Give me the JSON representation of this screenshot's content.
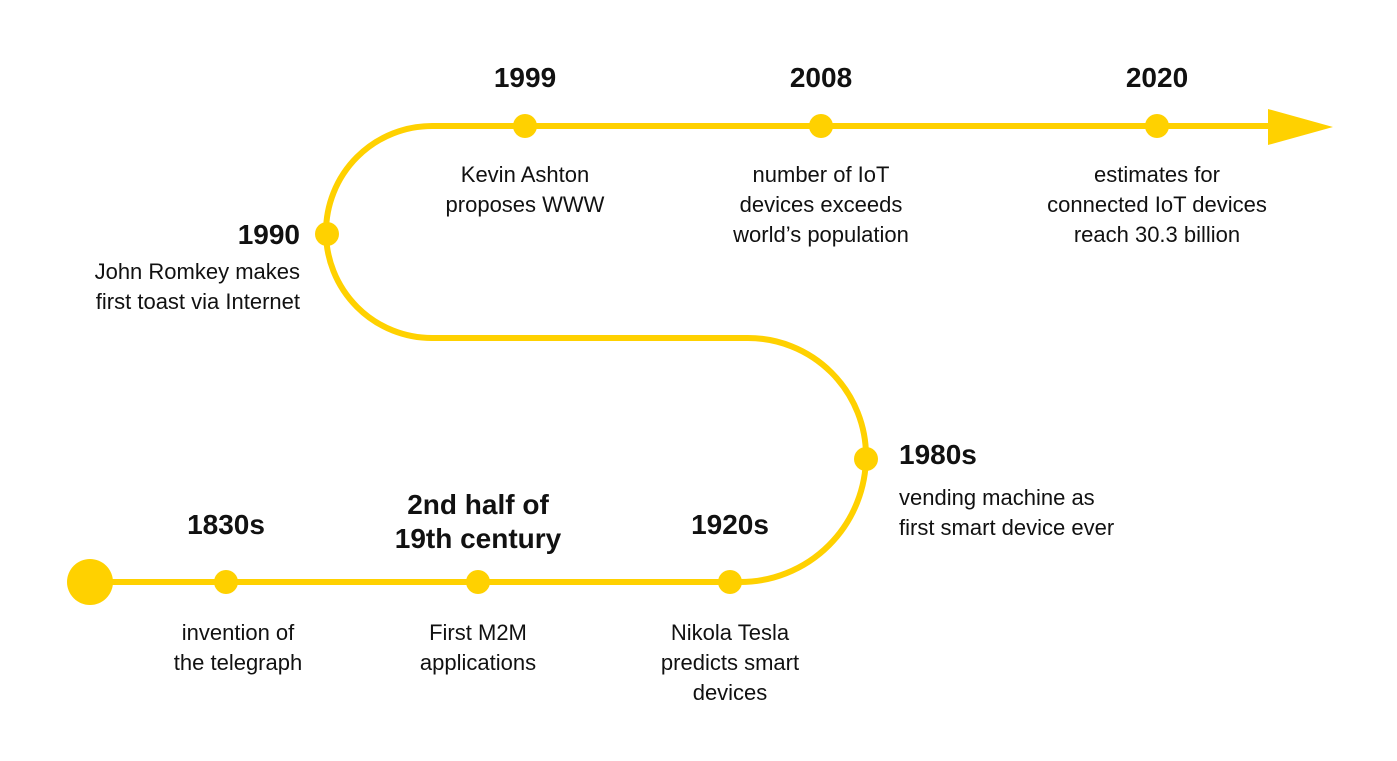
{
  "accent_color": "#FFD100",
  "events": [
    {
      "id": "1830s",
      "year": "1830s",
      "desc": "invention of\nthe telegraph"
    },
    {
      "id": "m2m",
      "year": "2nd half of\n19th century",
      "desc": "First M2M\napplications"
    },
    {
      "id": "1920s",
      "year": "1920s",
      "desc": "Nikola Tesla\npredicts smart\ndevices"
    },
    {
      "id": "1980s",
      "year": "1980s",
      "desc": "vending machine as\nfirst smart device ever"
    },
    {
      "id": "1990",
      "year": "1990",
      "desc": "John Romkey makes\nfirst toast via Internet"
    },
    {
      "id": "1999",
      "year": "1999",
      "desc": "Kevin Ashton\nproposes WWW"
    },
    {
      "id": "2008",
      "year": "2008",
      "desc": "number of IoT\ndevices exceeds\nworld’s population"
    },
    {
      "id": "2020",
      "year": "2020",
      "desc": "estimates for\nconnected IoT devices\nreach 30.3 billion"
    }
  ]
}
